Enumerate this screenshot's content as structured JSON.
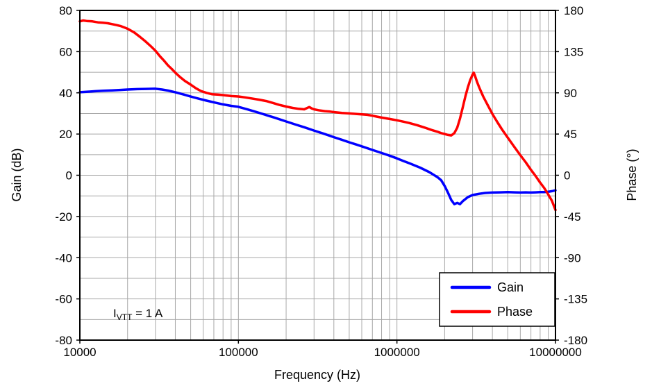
{
  "chart_data": {
    "type": "line",
    "title": "",
    "xlabel": "Frequency (Hz)",
    "ylabel_left": "Gain (dB)",
    "ylabel_right": "Phase (°)",
    "x_scale": "log",
    "x_range": [
      10000,
      10000000
    ],
    "x_ticks": [
      10000,
      100000,
      1000000,
      10000000
    ],
    "x_tick_labels": [
      "10000",
      "100000",
      "1000000",
      "10000000"
    ],
    "y_left_range": [
      -80,
      80
    ],
    "y_left_ticks": [
      80,
      60,
      40,
      20,
      0,
      -20,
      -40,
      -60,
      -80
    ],
    "y_left_minor_step": 10,
    "y_right_range": [
      -180,
      180
    ],
    "y_right_ticks": [
      180,
      135,
      90,
      45,
      0,
      -45,
      -90,
      -135,
      -180
    ],
    "grid": true,
    "grid_color": "#A8A8A8",
    "frame_color": "#000000",
    "legend_position": "bottom-right",
    "annotation": {
      "prefix": "I",
      "subscript": "VTT",
      "suffix": " = 1 A"
    },
    "series": [
      {
        "name": "Gain",
        "axis": "left",
        "color": "#0000FF",
        "points": [
          [
            10000,
            40.3
          ],
          [
            11000,
            40.5
          ],
          [
            12500,
            40.8
          ],
          [
            14000,
            41.0
          ],
          [
            16000,
            41.2
          ],
          [
            18000,
            41.4
          ],
          [
            20000,
            41.6
          ],
          [
            23000,
            41.8
          ],
          [
            26000,
            41.9
          ],
          [
            30000,
            42.0
          ],
          [
            33000,
            41.6
          ],
          [
            36000,
            41.1
          ],
          [
            40000,
            40.3
          ],
          [
            45000,
            39.2
          ],
          [
            50000,
            38.2
          ],
          [
            56000,
            37.2
          ],
          [
            63000,
            36.2
          ],
          [
            70000,
            35.4
          ],
          [
            80000,
            34.4
          ],
          [
            90000,
            33.7
          ],
          [
            100000,
            33.2
          ],
          [
            115000,
            31.9
          ],
          [
            130000,
            30.7
          ],
          [
            150000,
            29.2
          ],
          [
            170000,
            27.9
          ],
          [
            200000,
            26.1
          ],
          [
            230000,
            24.6
          ],
          [
            260000,
            23.3
          ],
          [
            300000,
            21.7
          ],
          [
            350000,
            20.0
          ],
          [
            400000,
            18.5
          ],
          [
            450000,
            17.2
          ],
          [
            500000,
            16.0
          ],
          [
            560000,
            14.8
          ],
          [
            630000,
            13.5
          ],
          [
            700000,
            12.3
          ],
          [
            800000,
            10.8
          ],
          [
            900000,
            9.5
          ],
          [
            1000000,
            8.2
          ],
          [
            1100000,
            6.9
          ],
          [
            1200000,
            5.8
          ],
          [
            1400000,
            3.7
          ],
          [
            1600000,
            1.5
          ],
          [
            1800000,
            -0.9
          ],
          [
            1900000,
            -2.4
          ],
          [
            2000000,
            -5.2
          ],
          [
            2100000,
            -8.5
          ],
          [
            2200000,
            -12.0
          ],
          [
            2300000,
            -14.0
          ],
          [
            2400000,
            -13.4
          ],
          [
            2500000,
            -14.0
          ],
          [
            2600000,
            -12.6
          ],
          [
            2800000,
            -10.6
          ],
          [
            3000000,
            -9.6
          ],
          [
            3300000,
            -9.0
          ],
          [
            3600000,
            -8.6
          ],
          [
            4000000,
            -8.4
          ],
          [
            4500000,
            -8.3
          ],
          [
            5000000,
            -8.2
          ],
          [
            5500000,
            -8.3
          ],
          [
            6000000,
            -8.4
          ],
          [
            6500000,
            -8.3
          ],
          [
            7000000,
            -8.4
          ],
          [
            7500000,
            -8.3
          ],
          [
            8000000,
            -8.2
          ],
          [
            8500000,
            -8.2
          ],
          [
            9000000,
            -8.0
          ],
          [
            9500000,
            -7.7
          ],
          [
            10000000,
            -7.3
          ]
        ]
      },
      {
        "name": "Phase",
        "axis": "right",
        "color": "#FF0000",
        "points": [
          [
            10000,
            168
          ],
          [
            10500,
            169
          ],
          [
            11000,
            168.5
          ],
          [
            12000,
            168
          ],
          [
            13000,
            167
          ],
          [
            14000,
            166.5
          ],
          [
            15000,
            166
          ],
          [
            16000,
            165
          ],
          [
            17000,
            164
          ],
          [
            18000,
            163
          ],
          [
            19000,
            161.5
          ],
          [
            20000,
            160
          ],
          [
            22000,
            156
          ],
          [
            24000,
            151
          ],
          [
            26000,
            146
          ],
          [
            28000,
            141
          ],
          [
            30000,
            136
          ],
          [
            32000,
            130
          ],
          [
            34000,
            125
          ],
          [
            36000,
            120
          ],
          [
            38000,
            116
          ],
          [
            40000,
            112
          ],
          [
            43000,
            107
          ],
          [
            46000,
            103
          ],
          [
            50000,
            99
          ],
          [
            54000,
            95
          ],
          [
            58000,
            92
          ],
          [
            63000,
            90
          ],
          [
            68000,
            88.5
          ],
          [
            75000,
            88
          ],
          [
            80000,
            87.5
          ],
          [
            90000,
            86.5
          ],
          [
            100000,
            86
          ],
          [
            110000,
            85
          ],
          [
            120000,
            84
          ],
          [
            135000,
            82.5
          ],
          [
            150000,
            81
          ],
          [
            165000,
            79
          ],
          [
            180000,
            77
          ],
          [
            200000,
            75
          ],
          [
            220000,
            73.5
          ],
          [
            240000,
            72.5
          ],
          [
            260000,
            72
          ],
          [
            280000,
            74.5
          ],
          [
            290000,
            73
          ],
          [
            300000,
            72
          ],
          [
            320000,
            71
          ],
          [
            350000,
            70
          ],
          [
            380000,
            69.5
          ],
          [
            400000,
            69
          ],
          [
            450000,
            68
          ],
          [
            500000,
            67.5
          ],
          [
            550000,
            67
          ],
          [
            600000,
            66.5
          ],
          [
            650000,
            66
          ],
          [
            700000,
            65
          ],
          [
            750000,
            64
          ],
          [
            800000,
            63
          ],
          [
            900000,
            61.5
          ],
          [
            1000000,
            60
          ],
          [
            1100000,
            58.5
          ],
          [
            1200000,
            57
          ],
          [
            1350000,
            54.5
          ],
          [
            1500000,
            52
          ],
          [
            1650000,
            49.5
          ],
          [
            1800000,
            47.5
          ],
          [
            1900000,
            46
          ],
          [
            2000000,
            45
          ],
          [
            2100000,
            44
          ],
          [
            2200000,
            43.5
          ],
          [
            2300000,
            46
          ],
          [
            2400000,
            52
          ],
          [
            2500000,
            62
          ],
          [
            2600000,
            74
          ],
          [
            2700000,
            86
          ],
          [
            2800000,
            96
          ],
          [
            2900000,
            104
          ],
          [
            3000000,
            110
          ],
          [
            3050000,
            112
          ],
          [
            3100000,
            109
          ],
          [
            3200000,
            102
          ],
          [
            3300000,
            96
          ],
          [
            3500000,
            86
          ],
          [
            3700000,
            78
          ],
          [
            4000000,
            67
          ],
          [
            4300000,
            58
          ],
          [
            4600000,
            50
          ],
          [
            5000000,
            41
          ],
          [
            5500000,
            31
          ],
          [
            6000000,
            22
          ],
          [
            6500000,
            14
          ],
          [
            7000000,
            6
          ],
          [
            7500000,
            -1
          ],
          [
            8000000,
            -8
          ],
          [
            8500000,
            -14
          ],
          [
            9000000,
            -21
          ],
          [
            9500000,
            -28
          ],
          [
            10000000,
            -38
          ]
        ]
      }
    ]
  }
}
